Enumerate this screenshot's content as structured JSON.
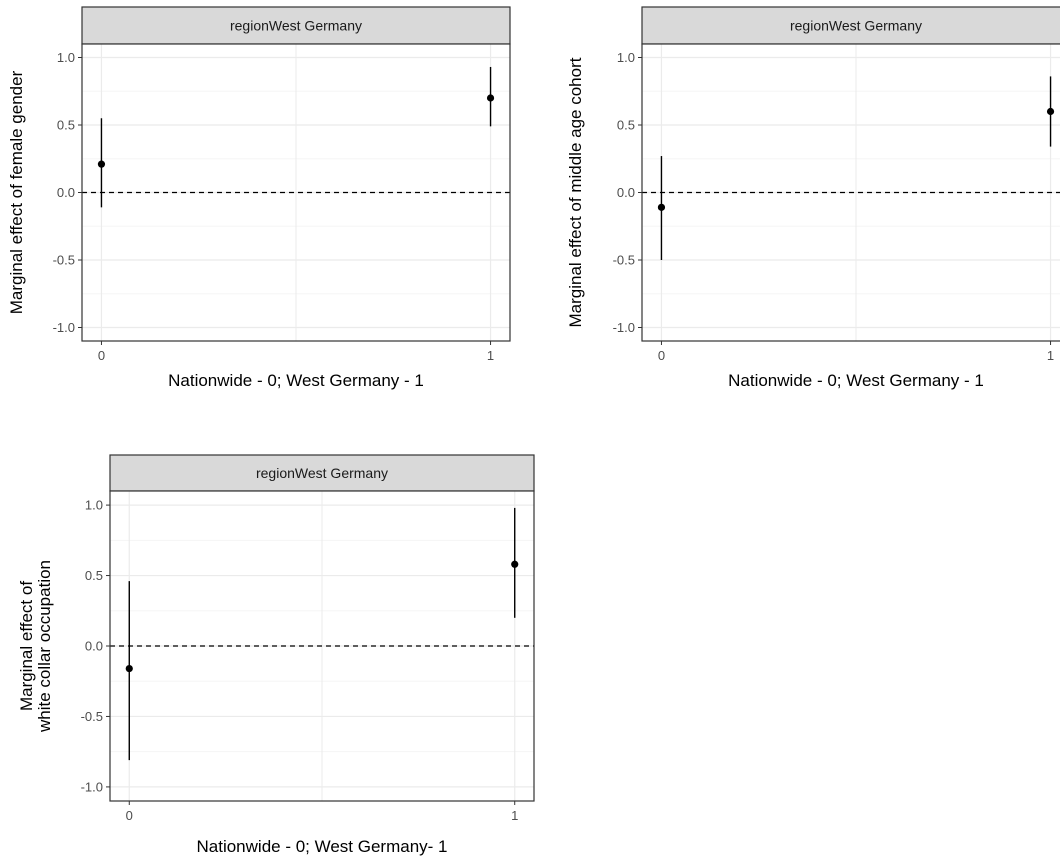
{
  "colors": {
    "strip_fill": "#d9d9d9",
    "panel_border": "#333333",
    "grid_major": "#ebebeb",
    "grid_minor": "#f5f5f5",
    "marks": "#000000",
    "tick_text": "#4d4d4d"
  },
  "chart_data": [
    {
      "type": "scatter",
      "title": "",
      "strip_label": "regionWest Germany",
      "xlabel": "Nationwide - 0; West Germany - 1",
      "ylabel": [
        "Marginal effect of female gender"
      ],
      "x_ticks": [
        0,
        1
      ],
      "x_tick_labels": [
        "0",
        "1"
      ],
      "y_ticks": [
        -1.0,
        -0.5,
        0.0,
        0.5,
        1.0
      ],
      "y_tick_labels": [
        "-1.0",
        "-0.5",
        "0.0",
        "0.5",
        "1.0"
      ],
      "xlim": [
        -0.05,
        1.05
      ],
      "ylim": [
        -1.1,
        1.1
      ],
      "reference_line": {
        "y": 0,
        "style": "dashed"
      },
      "grid": true,
      "points": [
        {
          "x": 0,
          "y": 0.21,
          "lower": -0.11,
          "upper": 0.55
        },
        {
          "x": 1,
          "y": 0.7,
          "lower": 0.49,
          "upper": 0.93
        }
      ]
    },
    {
      "type": "scatter",
      "title": "",
      "strip_label": "regionWest Germany",
      "xlabel": "Nationwide - 0; West Germany - 1",
      "ylabel": [
        "Marginal effect of middle age cohort"
      ],
      "x_ticks": [
        0,
        1
      ],
      "x_tick_labels": [
        "0",
        "1"
      ],
      "y_ticks": [
        -1.0,
        -0.5,
        0.0,
        0.5,
        1.0
      ],
      "y_tick_labels": [
        "-1.0",
        "-0.5",
        "0.0",
        "0.5",
        "1.0"
      ],
      "xlim": [
        -0.05,
        1.05
      ],
      "ylim": [
        -1.1,
        1.1
      ],
      "reference_line": {
        "y": 0,
        "style": "dashed"
      },
      "grid": true,
      "points": [
        {
          "x": 0,
          "y": -0.11,
          "lower": -0.5,
          "upper": 0.27
        },
        {
          "x": 1,
          "y": 0.6,
          "lower": 0.34,
          "upper": 0.86
        }
      ]
    },
    {
      "type": "scatter",
      "title": "",
      "strip_label": "regionWest Germany",
      "xlabel": "Nationwide - 0; West Germany- 1",
      "ylabel": [
        "Marginal effect of",
        "white collar occupation"
      ],
      "x_ticks": [
        0,
        1
      ],
      "x_tick_labels": [
        "0",
        "1"
      ],
      "y_ticks": [
        -1.0,
        -0.5,
        0.0,
        0.5,
        1.0
      ],
      "y_tick_labels": [
        "-1.0",
        "-0.5",
        "0.0",
        "0.5",
        "1.0"
      ],
      "xlim": [
        -0.05,
        1.05
      ],
      "ylim": [
        -1.1,
        1.1
      ],
      "reference_line": {
        "y": 0,
        "style": "dashed"
      },
      "grid": true,
      "points": [
        {
          "x": 0,
          "y": -0.16,
          "lower": -0.81,
          "upper": 0.46
        },
        {
          "x": 1,
          "y": 0.58,
          "lower": 0.2,
          "upper": 0.98
        }
      ]
    }
  ]
}
